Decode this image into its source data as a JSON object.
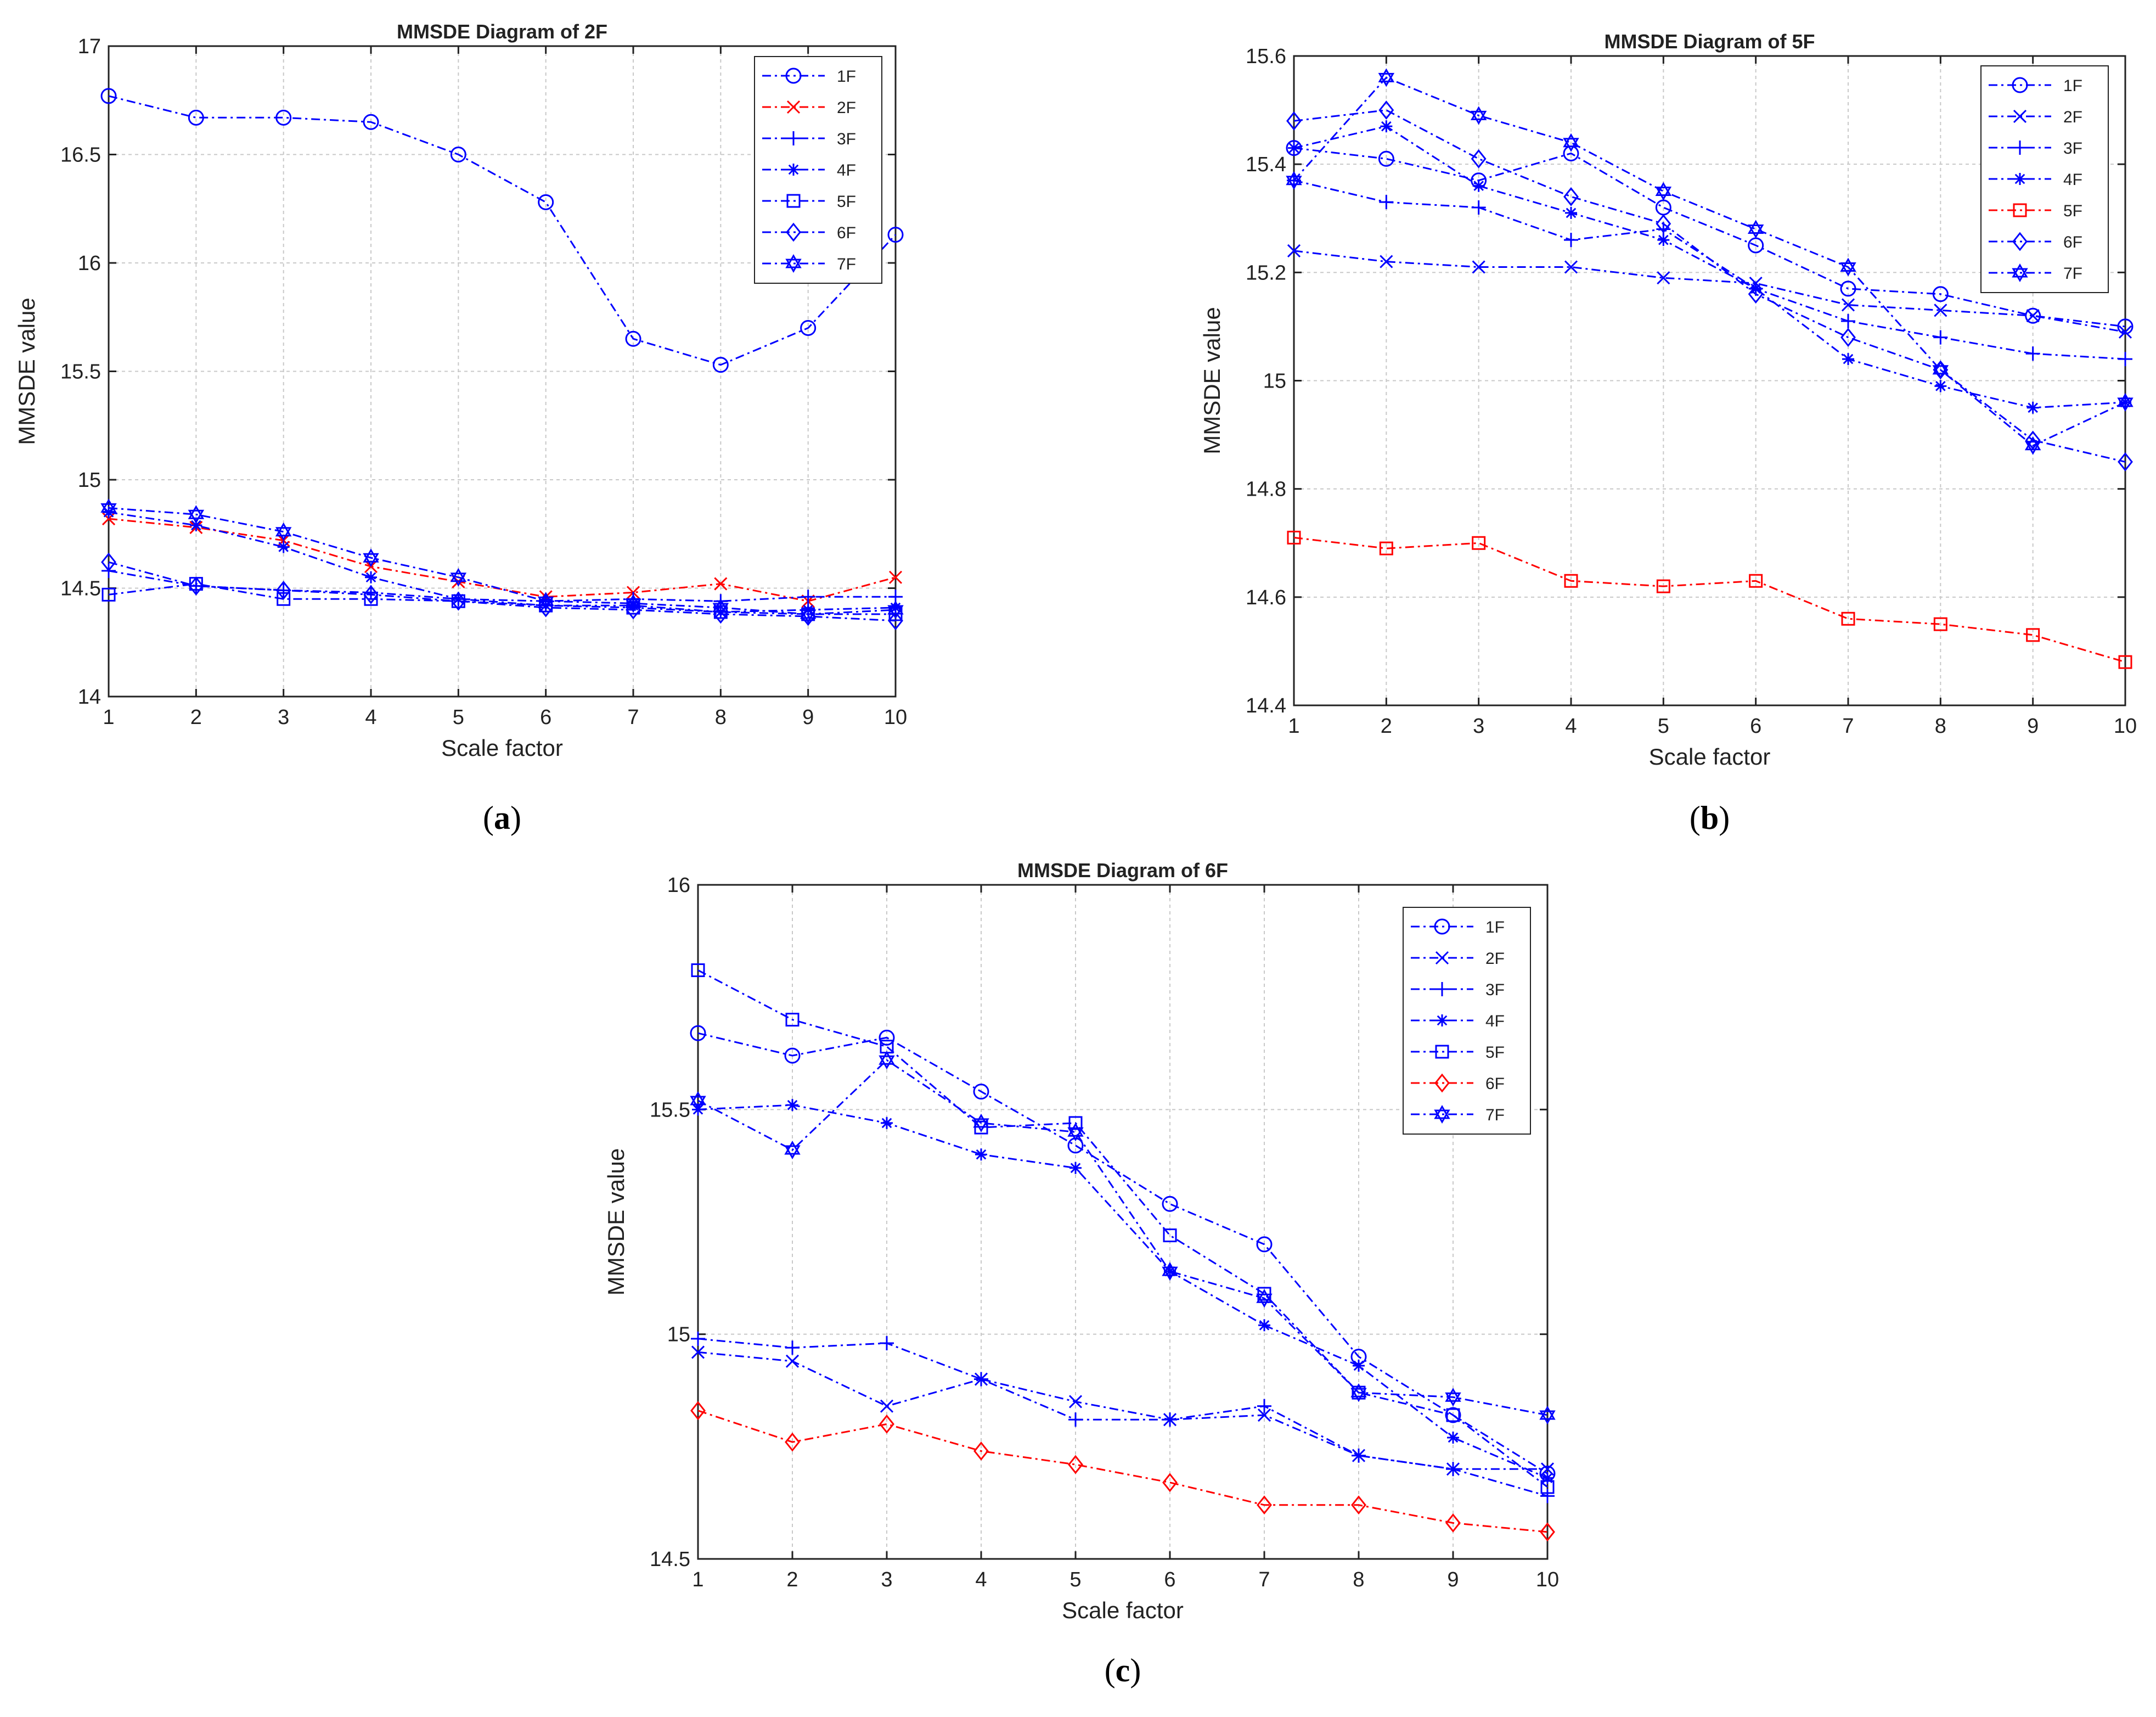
{
  "chart_data": [
    {
      "type": "line",
      "title": "MMSDE Diagram of 2F",
      "xlabel": "Scale factor",
      "ylabel": "MMSDE value",
      "caption_letter": "a",
      "caption_open": "(",
      "caption_close": ")",
      "x": [
        1,
        2,
        3,
        4,
        5,
        6,
        7,
        8,
        9,
        10
      ],
      "xlim": [
        1,
        10
      ],
      "ylim": [
        14,
        17
      ],
      "xticks": [
        "1",
        "2",
        "3",
        "4",
        "5",
        "6",
        "7",
        "8",
        "9",
        "10"
      ],
      "yticks": [
        {
          "v": 14,
          "t": "14"
        },
        {
          "v": 14.5,
          "t": "14.5"
        },
        {
          "v": 15,
          "t": "15"
        },
        {
          "v": 15.5,
          "t": "15.5"
        },
        {
          "v": 16,
          "t": "16"
        },
        {
          "v": 16.5,
          "t": "16.5"
        },
        {
          "v": 17,
          "t": "17"
        }
      ],
      "grid": true,
      "legend_position": "top-right",
      "series": [
        {
          "name": "1F",
          "marker": "circle",
          "color": "#0000ff",
          "values": [
            16.77,
            16.67,
            16.67,
            16.65,
            16.5,
            16.28,
            15.65,
            15.53,
            15.7,
            16.13
          ]
        },
        {
          "name": "2F",
          "marker": "x",
          "color": "#ff0000",
          "values": [
            14.82,
            14.78,
            14.72,
            14.6,
            14.53,
            14.46,
            14.48,
            14.52,
            14.44,
            14.55
          ]
        },
        {
          "name": "3F",
          "marker": "plus",
          "color": "#0000ff",
          "values": [
            14.58,
            14.51,
            14.49,
            14.48,
            14.45,
            14.44,
            14.45,
            14.44,
            14.46,
            14.46
          ]
        },
        {
          "name": "4F",
          "marker": "star",
          "color": "#0000ff",
          "values": [
            14.85,
            14.79,
            14.69,
            14.55,
            14.45,
            14.42,
            14.42,
            14.39,
            14.4,
            14.41
          ]
        },
        {
          "name": "5F",
          "marker": "square",
          "color": "#0000ff",
          "values": [
            14.47,
            14.52,
            14.45,
            14.45,
            14.44,
            14.42,
            14.41,
            14.39,
            14.38,
            14.38
          ]
        },
        {
          "name": "6F",
          "marker": "diamond",
          "color": "#0000ff",
          "values": [
            14.62,
            14.51,
            14.49,
            14.47,
            14.44,
            14.41,
            14.4,
            14.38,
            14.37,
            14.35
          ]
        },
        {
          "name": "7F",
          "marker": "hexagram",
          "color": "#0000ff",
          "values": [
            14.87,
            14.84,
            14.76,
            14.64,
            14.55,
            14.44,
            14.43,
            14.41,
            14.38,
            14.4
          ]
        }
      ]
    },
    {
      "type": "line",
      "title": "MMSDE Diagram of 5F",
      "xlabel": "Scale factor",
      "ylabel": "MMSDE value",
      "caption_letter": "b",
      "caption_open": "(",
      "caption_close": ")",
      "x": [
        1,
        2,
        3,
        4,
        5,
        6,
        7,
        8,
        9,
        10
      ],
      "xlim": [
        1,
        10
      ],
      "ylim": [
        14.4,
        15.6
      ],
      "xticks": [
        "1",
        "2",
        "3",
        "4",
        "5",
        "6",
        "7",
        "8",
        "9",
        "10"
      ],
      "yticks": [
        {
          "v": 14.4,
          "t": "14.4"
        },
        {
          "v": 14.6,
          "t": "14.6"
        },
        {
          "v": 14.8,
          "t": "14.8"
        },
        {
          "v": 15,
          "t": "15"
        },
        {
          "v": 15.2,
          "t": "15.2"
        },
        {
          "v": 15.4,
          "t": "15.4"
        },
        {
          "v": 15.6,
          "t": "15.6"
        }
      ],
      "grid": true,
      "legend_position": "top-right",
      "series": [
        {
          "name": "1F",
          "marker": "circle",
          "color": "#0000ff",
          "values": [
            15.43,
            15.41,
            15.37,
            15.42,
            15.32,
            15.25,
            15.17,
            15.16,
            15.12,
            15.1
          ]
        },
        {
          "name": "2F",
          "marker": "x",
          "color": "#0000ff",
          "values": [
            15.24,
            15.22,
            15.21,
            15.21,
            15.19,
            15.18,
            15.14,
            15.13,
            15.12,
            15.09
          ]
        },
        {
          "name": "3F",
          "marker": "plus",
          "color": "#0000ff",
          "values": [
            15.37,
            15.33,
            15.32,
            15.26,
            15.28,
            15.17,
            15.11,
            15.08,
            15.05,
            15.04
          ]
        },
        {
          "name": "4F",
          "marker": "star",
          "color": "#0000ff",
          "values": [
            15.43,
            15.47,
            15.36,
            15.31,
            15.26,
            15.17,
            15.04,
            14.99,
            14.95,
            14.96
          ]
        },
        {
          "name": "5F",
          "marker": "square",
          "color": "#ff0000",
          "values": [
            14.71,
            14.69,
            14.7,
            14.63,
            14.62,
            14.63,
            14.56,
            14.55,
            14.53,
            14.48
          ]
        },
        {
          "name": "6F",
          "marker": "diamond",
          "color": "#0000ff",
          "values": [
            15.48,
            15.5,
            15.41,
            15.34,
            15.29,
            15.16,
            15.08,
            15.02,
            14.89,
            14.85
          ]
        },
        {
          "name": "7F",
          "marker": "hexagram",
          "color": "#0000ff",
          "values": [
            15.37,
            15.56,
            15.49,
            15.44,
            15.35,
            15.28,
            15.21,
            15.02,
            14.88,
            14.96
          ]
        }
      ]
    },
    {
      "type": "line",
      "title": "MMSDE Diagram of 6F",
      "xlabel": "Scale factor",
      "ylabel": "MMSDE value",
      "caption_letter": "c",
      "caption_open": "(",
      "caption_close": ")",
      "x": [
        1,
        2,
        3,
        4,
        5,
        6,
        7,
        8,
        9,
        10
      ],
      "xlim": [
        1,
        10
      ],
      "ylim": [
        14.5,
        16
      ],
      "xticks": [
        "1",
        "2",
        "3",
        "4",
        "5",
        "6",
        "7",
        "8",
        "9",
        "10"
      ],
      "yticks": [
        {
          "v": 14.5,
          "t": "14.5"
        },
        {
          "v": 15,
          "t": "15"
        },
        {
          "v": 15.5,
          "t": "15.5"
        },
        {
          "v": 16,
          "t": "16"
        }
      ],
      "grid": true,
      "legend_position": "top-right",
      "series": [
        {
          "name": "1F",
          "marker": "circle",
          "color": "#0000ff",
          "values": [
            15.67,
            15.62,
            15.66,
            15.54,
            15.42,
            15.29,
            15.2,
            14.95,
            14.82,
            14.69
          ]
        },
        {
          "name": "2F",
          "marker": "x",
          "color": "#0000ff",
          "values": [
            14.96,
            14.94,
            14.84,
            14.9,
            14.85,
            14.81,
            14.82,
            14.73,
            14.7,
            14.7
          ]
        },
        {
          "name": "3F",
          "marker": "plus",
          "color": "#0000ff",
          "values": [
            14.99,
            14.97,
            14.98,
            14.9,
            14.81,
            14.81,
            14.84,
            14.73,
            14.7,
            14.64
          ]
        },
        {
          "name": "4F",
          "marker": "star",
          "color": "#0000ff",
          "values": [
            15.5,
            15.51,
            15.47,
            15.4,
            15.37,
            15.14,
            15.02,
            14.93,
            14.77,
            14.68
          ]
        },
        {
          "name": "5F",
          "marker": "square",
          "color": "#0000ff",
          "values": [
            15.81,
            15.7,
            15.64,
            15.46,
            15.47,
            15.22,
            15.09,
            14.87,
            14.82,
            14.66
          ]
        },
        {
          "name": "6F",
          "marker": "diamond",
          "color": "#ff0000",
          "values": [
            14.83,
            14.76,
            14.8,
            14.74,
            14.71,
            14.67,
            14.62,
            14.62,
            14.58,
            14.56
          ]
        },
        {
          "name": "7F",
          "marker": "hexagram",
          "color": "#0000ff",
          "values": [
            15.52,
            15.41,
            15.61,
            15.47,
            15.45,
            15.14,
            15.08,
            14.87,
            14.86,
            14.82
          ]
        }
      ]
    }
  ]
}
